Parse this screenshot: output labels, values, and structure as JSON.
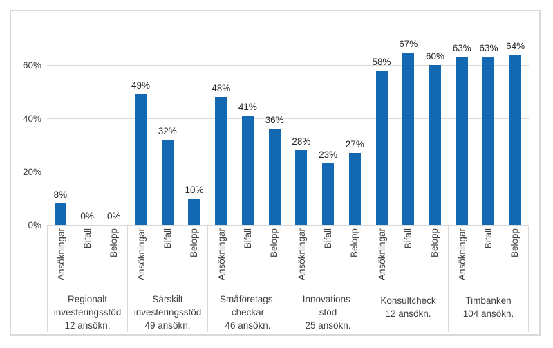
{
  "chart_data": {
    "type": "bar",
    "title": "",
    "xlabel": "",
    "ylabel": "",
    "value_suffix": "%",
    "ylim": [
      0,
      70
    ],
    "yticks": [
      0,
      20,
      40,
      60
    ],
    "ytick_labels": [
      "0%",
      "20%",
      "40%",
      "60%"
    ],
    "grid": true,
    "legend_position": "none",
    "series_labels": [
      "Ansökningar",
      "Bifall",
      "Belopp"
    ],
    "groups": [
      {
        "title_lines": "Regionalt\ninvesteringsstöd\n12 ansökn.",
        "title": "Regionalt investeringsstöd 12 ansökn.",
        "values": [
          8,
          0,
          0
        ],
        "value_labels": [
          "8%",
          "0%",
          "0%"
        ]
      },
      {
        "title_lines": "Särskilt\ninvesteringsstöd\n49 ansökn.",
        "title": "Särskilt investeringsstöd 49 ansökn.",
        "values": [
          49,
          32,
          10
        ],
        "value_labels": [
          "49%",
          "32%",
          "10%"
        ]
      },
      {
        "title_lines": "Småföretags-\ncheckar\n46 ansökn.",
        "title": "Småföretags-checkar 46 ansökn.",
        "values": [
          48,
          41,
          36
        ],
        "value_labels": [
          "48%",
          "41%",
          "36%"
        ]
      },
      {
        "title_lines": "Innovations-\nstöd\n25 ansökn.",
        "title": "Innovations-stöd 25 ansökn.",
        "values": [
          28,
          23,
          27
        ],
        "value_labels": [
          "28%",
          "23%",
          "27%"
        ]
      },
      {
        "title_lines": "Konsultcheck\n12 ansökn.",
        "title": "Konsultcheck 12 ansökn.",
        "values": [
          58,
          67,
          60
        ],
        "value_labels": [
          "58%",
          "67%",
          "60%"
        ]
      },
      {
        "title_lines": "Timbanken\n104 ansökn.",
        "title": "Timbanken 104 ansökn.",
        "values": [
          63,
          63,
          64
        ],
        "value_labels": [
          "63%",
          "63%",
          "64%"
        ]
      }
    ]
  },
  "colors": {
    "bar": "#1268b1",
    "gridline": "#d9d9d9",
    "frame_border": "#d9d9d9",
    "axis_text": "#404040",
    "value_text": "#262626",
    "background": "#ffffff"
  },
  "layout_hints": {
    "bar_orientation": "vertical",
    "category_labels_rotated": "90deg-bottom-to-top",
    "data_labels": "above-bars"
  }
}
